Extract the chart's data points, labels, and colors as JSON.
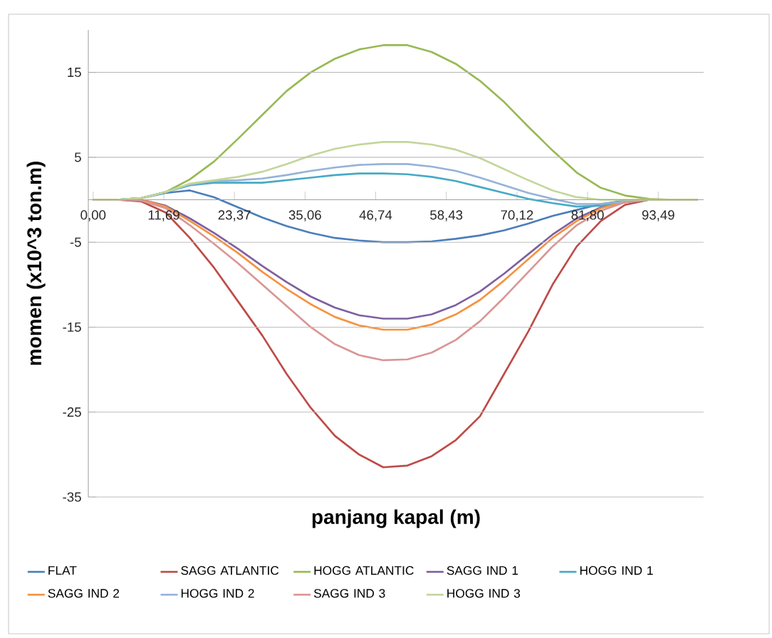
{
  "chart_data": {
    "type": "line",
    "xlabel": "panjang kapal (m)",
    "ylabel": "momen  (x10^3 ton.m)",
    "x": [
      0,
      4,
      8,
      12,
      16,
      20,
      24,
      28,
      32,
      36,
      40,
      44,
      48,
      52,
      56,
      60,
      64,
      68,
      72,
      76,
      80,
      84,
      88,
      92,
      96,
      100
    ],
    "xlim": [
      -0.8,
      101
    ],
    "ylim": [
      -35,
      20
    ],
    "xticks": [
      {
        "value": 0,
        "label": "0,00"
      },
      {
        "value": 11.69,
        "label": "11,69"
      },
      {
        "value": 23.37,
        "label": "23,37"
      },
      {
        "value": 35.06,
        "label": "35,06"
      },
      {
        "value": 46.74,
        "label": "46,74"
      },
      {
        "value": 58.43,
        "label": "58,43"
      },
      {
        "value": 70.12,
        "label": "70,12"
      },
      {
        "value": 81.8,
        "label": "81,80"
      },
      {
        "value": 93.49,
        "label": "93,49"
      }
    ],
    "yticks": [
      -35,
      -25,
      -15,
      -5,
      5,
      15
    ],
    "grid": "y",
    "legend": "bottom",
    "line_style": "solid",
    "series": [
      {
        "name": "FLAT",
        "color": "#4a7ebb",
        "values": [
          0,
          0,
          0.2,
          0.8,
          1.1,
          0.3,
          -0.9,
          -2.1,
          -3.1,
          -3.9,
          -4.5,
          -4.8,
          -5,
          -5,
          -4.9,
          -4.6,
          -4.2,
          -3.6,
          -2.8,
          -1.9,
          -1.2,
          -0.5,
          -0.1,
          0,
          null,
          null
        ]
      },
      {
        "name": "SAGG ATLANTIC",
        "color": "#be4b48",
        "values": [
          0,
          0,
          -0.2,
          -1.5,
          -4.5,
          -8,
          -12,
          -16,
          -20.5,
          -24.5,
          -27.8,
          -30,
          -31.5,
          -31.3,
          -30.2,
          -28.3,
          -25.5,
          -20.5,
          -15.5,
          -10,
          -5.5,
          -2.5,
          -0.6,
          0,
          0,
          0
        ]
      },
      {
        "name": "HOGG ATLANTIC",
        "color": "#98b954",
        "values": [
          0,
          0,
          0.2,
          0.9,
          2.4,
          4.5,
          7.2,
          10,
          12.8,
          15,
          16.6,
          17.7,
          18.2,
          18.2,
          17.4,
          16,
          14,
          11.5,
          8.6,
          5.8,
          3.2,
          1.4,
          0.5,
          0.1,
          0,
          0
        ]
      },
      {
        "name": "SAGG IND 1",
        "color": "#7d60a0",
        "values": [
          0,
          0,
          0,
          -0.7,
          -2.2,
          -3.9,
          -5.8,
          -7.8,
          -9.7,
          -11.4,
          -12.7,
          -13.6,
          -14,
          -14,
          -13.5,
          -12.4,
          -10.8,
          -8.7,
          -6.4,
          -4.1,
          -2.2,
          -0.9,
          -0.2,
          0,
          null,
          null
        ]
      },
      {
        "name": "HOGG IND 1",
        "color": "#46aac5",
        "values": [
          0,
          0,
          0.2,
          0.9,
          1.7,
          2,
          2,
          2,
          2.3,
          2.6,
          2.9,
          3.1,
          3.1,
          3,
          2.7,
          2.2,
          1.5,
          0.8,
          0.1,
          -0.4,
          -0.8,
          -0.7,
          -0.3,
          0,
          null,
          null
        ]
      },
      {
        "name": "SAGG IND 2",
        "color": "#f69240",
        "values": [
          0,
          0,
          0,
          -0.8,
          -2.5,
          -4.3,
          -6.3,
          -8.5,
          -10.5,
          -12.3,
          -13.8,
          -14.8,
          -15.3,
          -15.3,
          -14.7,
          -13.5,
          -11.8,
          -9.5,
          -7,
          -4.5,
          -2.5,
          -1,
          -0.2,
          0,
          0,
          0
        ]
      },
      {
        "name": "HOGG IND 2",
        "color": "#95b3d7",
        "values": [
          0,
          0,
          0.2,
          0.9,
          1.8,
          2.2,
          2.3,
          2.5,
          2.9,
          3.4,
          3.8,
          4.1,
          4.2,
          4.2,
          3.9,
          3.4,
          2.6,
          1.7,
          0.8,
          0.1,
          -0.5,
          -0.5,
          -0.2,
          0,
          0,
          0
        ]
      },
      {
        "name": "SAGG IND 3",
        "color": "#d99694",
        "values": [
          0,
          0,
          -0.1,
          -1,
          -3,
          -5.2,
          -7.5,
          -10,
          -12.5,
          -15,
          -17,
          -18.3,
          -18.9,
          -18.8,
          -18,
          -16.5,
          -14.3,
          -11.5,
          -8.5,
          -5.5,
          -3,
          -1.3,
          -0.3,
          0,
          0,
          0
        ]
      },
      {
        "name": "HOGG IND 3",
        "color": "#c3d69b",
        "values": [
          0,
          0,
          0.2,
          0.9,
          1.9,
          2.3,
          2.7,
          3.3,
          4.2,
          5.2,
          6,
          6.5,
          6.8,
          6.8,
          6.5,
          5.9,
          4.9,
          3.6,
          2.3,
          1.1,
          0.3,
          0,
          0,
          0,
          0,
          0
        ]
      }
    ]
  }
}
